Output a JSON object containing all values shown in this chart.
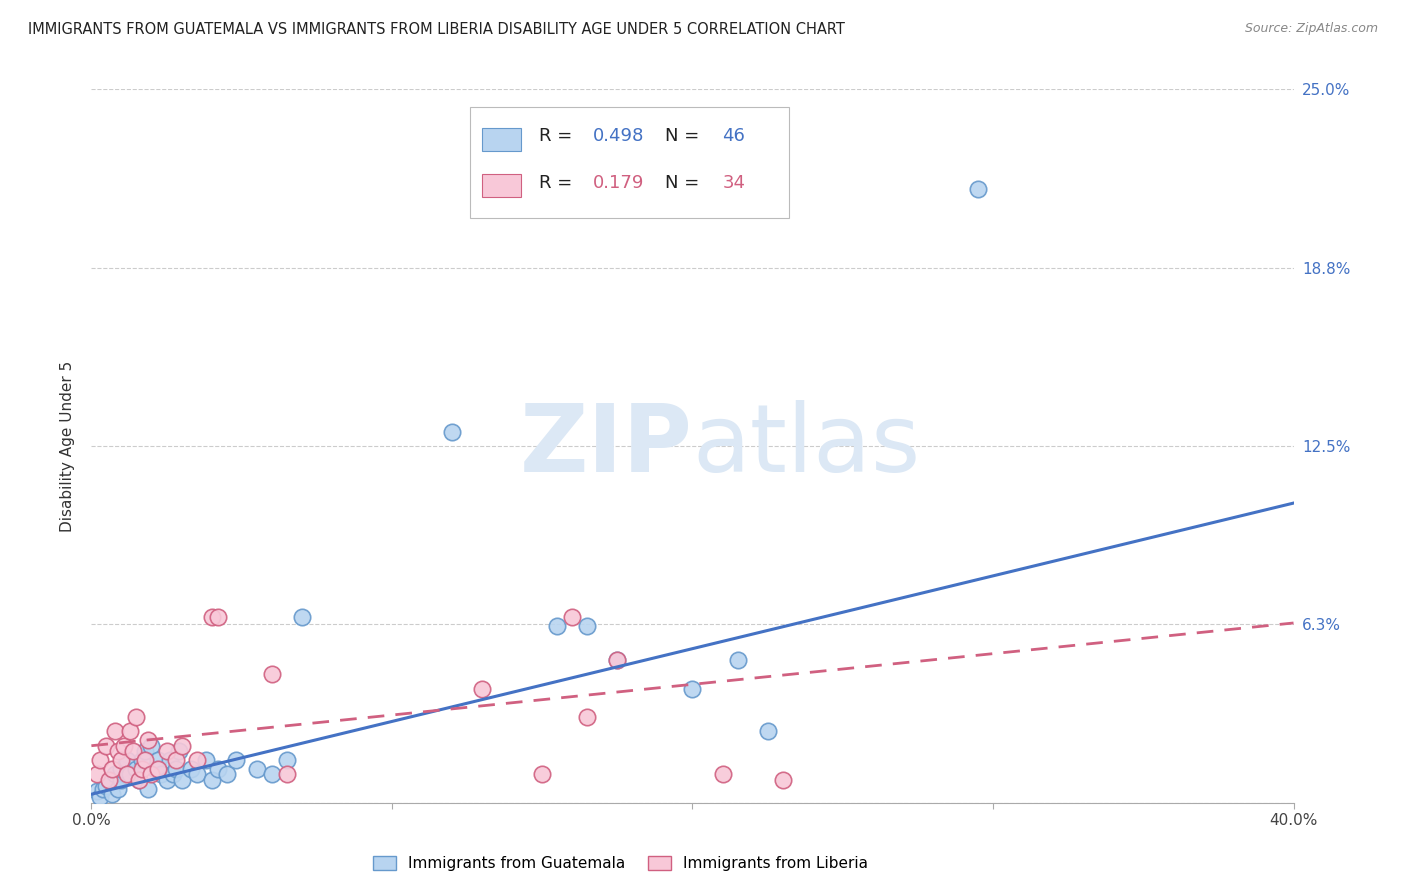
{
  "title": "IMMIGRANTS FROM GUATEMALA VS IMMIGRANTS FROM LIBERIA DISABILITY AGE UNDER 5 CORRELATION CHART",
  "source": "Source: ZipAtlas.com",
  "ylabel": "Disability Age Under 5",
  "xlim": [
    0.0,
    0.4
  ],
  "ylim": [
    0.0,
    0.25
  ],
  "yticks": [
    0.0,
    0.0625,
    0.125,
    0.1875,
    0.25
  ],
  "ytick_labels": [
    "",
    "6.3%",
    "12.5%",
    "18.8%",
    "25.0%"
  ],
  "xticks": [
    0.0,
    0.1,
    0.2,
    0.3,
    0.4
  ],
  "xtick_labels": [
    "0.0%",
    "",
    "",
    "",
    "40.0%"
  ],
  "series1_label": "Immigrants from Guatemala",
  "series1_color": "#b8d4f0",
  "series1_edge_color": "#6699cc",
  "series1_line_color": "#4472c4",
  "series2_label": "Immigrants from Liberia",
  "series2_color": "#f8c8d8",
  "series2_edge_color": "#d06080",
  "series2_line_color": "#d06080",
  "background_color": "#ffffff",
  "watermark": "ZIPatlas",
  "watermark_color": "#dce8f5",
  "grid_color": "#cccccc",
  "title_color": "#222222",
  "right_tick_color": "#4472c4",
  "guatemala_x": [
    0.002,
    0.003,
    0.004,
    0.005,
    0.006,
    0.007,
    0.008,
    0.009,
    0.01,
    0.01,
    0.012,
    0.013,
    0.015,
    0.016,
    0.017,
    0.018,
    0.019,
    0.02,
    0.021,
    0.022,
    0.023,
    0.025,
    0.026,
    0.027,
    0.028,
    0.029,
    0.03,
    0.033,
    0.035,
    0.038,
    0.04,
    0.042,
    0.045,
    0.048,
    0.055,
    0.06,
    0.065,
    0.07,
    0.12,
    0.155,
    0.165,
    0.175,
    0.2,
    0.215,
    0.225,
    0.295
  ],
  "guatemala_y": [
    0.004,
    0.002,
    0.005,
    0.006,
    0.008,
    0.003,
    0.01,
    0.005,
    0.008,
    0.012,
    0.015,
    0.01,
    0.012,
    0.008,
    0.015,
    0.018,
    0.005,
    0.02,
    0.012,
    0.015,
    0.01,
    0.008,
    0.015,
    0.01,
    0.012,
    0.018,
    0.008,
    0.012,
    0.01,
    0.015,
    0.008,
    0.012,
    0.01,
    0.015,
    0.012,
    0.01,
    0.015,
    0.065,
    0.13,
    0.062,
    0.062,
    0.05,
    0.04,
    0.05,
    0.025,
    0.215
  ],
  "liberia_x": [
    0.002,
    0.003,
    0.005,
    0.006,
    0.007,
    0.008,
    0.009,
    0.01,
    0.011,
    0.012,
    0.013,
    0.014,
    0.015,
    0.016,
    0.017,
    0.018,
    0.019,
    0.02,
    0.022,
    0.025,
    0.028,
    0.03,
    0.035,
    0.04,
    0.042,
    0.06,
    0.065,
    0.13,
    0.15,
    0.16,
    0.165,
    0.175,
    0.21,
    0.23
  ],
  "liberia_y": [
    0.01,
    0.015,
    0.02,
    0.008,
    0.012,
    0.025,
    0.018,
    0.015,
    0.02,
    0.01,
    0.025,
    0.018,
    0.03,
    0.008,
    0.012,
    0.015,
    0.022,
    0.01,
    0.012,
    0.018,
    0.015,
    0.02,
    0.015,
    0.065,
    0.065,
    0.045,
    0.01,
    0.04,
    0.01,
    0.065,
    0.03,
    0.05,
    0.01,
    0.008
  ],
  "line1_x0": 0.0,
  "line1_y0": 0.003,
  "line1_x1": 0.4,
  "line1_y1": 0.105,
  "line2_x0": 0.0,
  "line2_y0": 0.02,
  "line2_x1": 0.4,
  "line2_y1": 0.063
}
